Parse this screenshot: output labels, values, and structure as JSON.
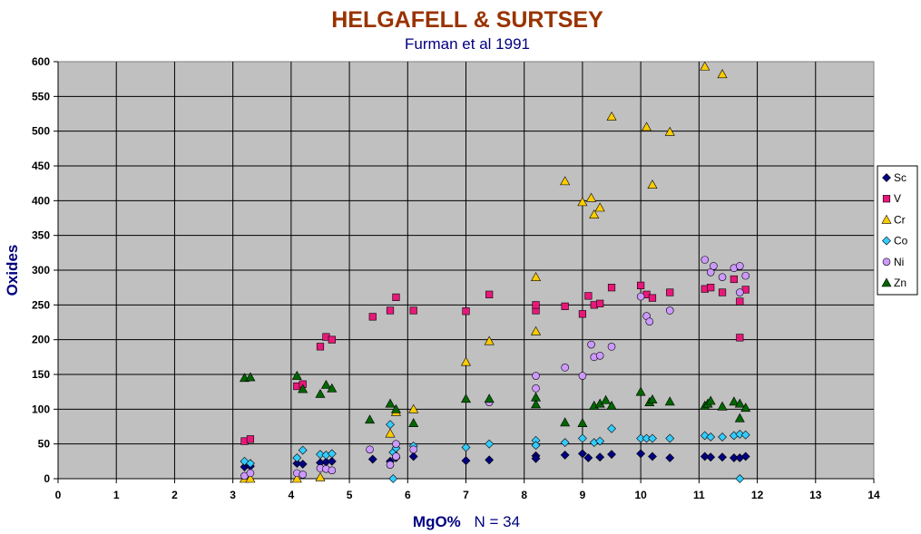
{
  "chart_data": {
    "type": "scatter",
    "title": "HELGAFELL & SURTSEY",
    "subtitle": "Furman et al 1991",
    "xlabel": "MgO%",
    "xlabel_note": "N = 34",
    "ylabel": "Oxides",
    "xlim": [
      0,
      14
    ],
    "ylim": [
      0,
      600
    ],
    "x_ticks": [
      "0",
      "1",
      "2",
      "3",
      "4",
      "5",
      "6",
      "7",
      "8",
      "9",
      "10",
      "11",
      "12",
      "13",
      "14"
    ],
    "y_ticks": [
      "0",
      "50",
      "100",
      "150",
      "200",
      "250",
      "300",
      "350",
      "400",
      "450",
      "500",
      "550",
      "600"
    ],
    "grid": true,
    "legend_position": "right",
    "background_color": "#c0c0c0",
    "series": [
      {
        "name": "Sc",
        "marker": "diamond",
        "color": "#000080",
        "points": [
          [
            3.2,
            17
          ],
          [
            3.3,
            18
          ],
          [
            4.1,
            22
          ],
          [
            4.2,
            21
          ],
          [
            4.5,
            23
          ],
          [
            4.6,
            24
          ],
          [
            4.7,
            25
          ],
          [
            5.4,
            28
          ],
          [
            5.7,
            25
          ],
          [
            5.8,
            30
          ],
          [
            6.1,
            32
          ],
          [
            7.0,
            26
          ],
          [
            7.4,
            27
          ],
          [
            8.2,
            33
          ],
          [
            8.2,
            29
          ],
          [
            8.7,
            34
          ],
          [
            9.0,
            36
          ],
          [
            9.1,
            30
          ],
          [
            9.3,
            31
          ],
          [
            9.5,
            35
          ],
          [
            10.0,
            36
          ],
          [
            10.2,
            32
          ],
          [
            10.5,
            30
          ],
          [
            11.1,
            32
          ],
          [
            11.2,
            31
          ],
          [
            11.4,
            31
          ],
          [
            11.6,
            30
          ],
          [
            11.7,
            30
          ],
          [
            11.8,
            32
          ]
        ]
      },
      {
        "name": "V",
        "marker": "square",
        "color": "#e8187a",
        "points": [
          [
            3.2,
            54
          ],
          [
            3.3,
            57
          ],
          [
            4.1,
            133
          ],
          [
            4.2,
            136
          ],
          [
            4.5,
            190
          ],
          [
            4.6,
            204
          ],
          [
            4.7,
            200
          ],
          [
            5.4,
            233
          ],
          [
            5.7,
            242
          ],
          [
            5.8,
            261
          ],
          [
            6.1,
            242
          ],
          [
            7.0,
            241
          ],
          [
            7.4,
            265
          ],
          [
            8.2,
            242
          ],
          [
            8.2,
            250
          ],
          [
            8.7,
            248
          ],
          [
            9.0,
            237
          ],
          [
            9.1,
            263
          ],
          [
            9.2,
            250
          ],
          [
            9.3,
            252
          ],
          [
            9.5,
            275
          ],
          [
            10.0,
            278
          ],
          [
            10.1,
            265
          ],
          [
            10.2,
            260
          ],
          [
            10.5,
            268
          ],
          [
            11.1,
            273
          ],
          [
            11.2,
            275
          ],
          [
            11.4,
            268
          ],
          [
            11.6,
            287
          ],
          [
            11.7,
            255
          ],
          [
            11.7,
            203
          ],
          [
            11.8,
            272
          ]
        ]
      },
      {
        "name": "Cr",
        "marker": "triangle",
        "color": "#ffcc00",
        "points": [
          [
            3.2,
            0
          ],
          [
            3.3,
            0
          ],
          [
            4.1,
            0
          ],
          [
            4.5,
            2
          ],
          [
            5.7,
            65
          ],
          [
            5.8,
            96
          ],
          [
            6.1,
            100
          ],
          [
            7.0,
            168
          ],
          [
            7.4,
            198
          ],
          [
            8.2,
            212
          ],
          [
            8.2,
            290
          ],
          [
            8.7,
            428
          ],
          [
            9.0,
            398
          ],
          [
            9.15,
            404
          ],
          [
            9.2,
            380
          ],
          [
            9.3,
            390
          ],
          [
            9.5,
            521
          ],
          [
            10.1,
            506
          ],
          [
            10.2,
            423
          ],
          [
            10.5,
            499
          ],
          [
            11.1,
            593
          ],
          [
            11.4,
            582
          ]
        ]
      },
      {
        "name": "Co",
        "marker": "diamond",
        "color": "#33ccff",
        "points": [
          [
            3.2,
            25
          ],
          [
            3.3,
            22
          ],
          [
            4.1,
            30
          ],
          [
            4.2,
            41
          ],
          [
            4.5,
            35
          ],
          [
            4.6,
            34
          ],
          [
            4.7,
            36
          ],
          [
            5.7,
            78
          ],
          [
            5.75,
            38
          ],
          [
            5.8,
            44
          ],
          [
            5.75,
            0
          ],
          [
            6.1,
            47
          ],
          [
            7.0,
            45
          ],
          [
            7.4,
            50
          ],
          [
            8.2,
            55
          ],
          [
            8.2,
            48
          ],
          [
            8.7,
            52
          ],
          [
            9.0,
            58
          ],
          [
            9.2,
            52
          ],
          [
            9.3,
            54
          ],
          [
            9.5,
            72
          ],
          [
            10.0,
            58
          ],
          [
            10.1,
            58
          ],
          [
            10.2,
            58
          ],
          [
            10.5,
            58
          ],
          [
            11.1,
            62
          ],
          [
            11.2,
            60
          ],
          [
            11.4,
            60
          ],
          [
            11.6,
            62
          ],
          [
            11.7,
            64
          ],
          [
            11.8,
            63
          ],
          [
            11.7,
            0
          ]
        ]
      },
      {
        "name": "Ni",
        "marker": "circle",
        "color": "#cc99ff",
        "points": [
          [
            3.2,
            4
          ],
          [
            3.3,
            8
          ],
          [
            4.1,
            8
          ],
          [
            4.2,
            6
          ],
          [
            4.5,
            15
          ],
          [
            4.6,
            14
          ],
          [
            4.7,
            12
          ],
          [
            5.35,
            42
          ],
          [
            5.7,
            20
          ],
          [
            5.8,
            50
          ],
          [
            5.8,
            32
          ],
          [
            6.1,
            42
          ],
          [
            7.4,
            110
          ],
          [
            8.2,
            148
          ],
          [
            8.2,
            130
          ],
          [
            8.7,
            160
          ],
          [
            9.0,
            148
          ],
          [
            9.15,
            193
          ],
          [
            9.2,
            175
          ],
          [
            9.3,
            177
          ],
          [
            9.5,
            190
          ],
          [
            10.0,
            262
          ],
          [
            10.1,
            234
          ],
          [
            10.15,
            226
          ],
          [
            10.5,
            242
          ],
          [
            11.1,
            315
          ],
          [
            11.2,
            297
          ],
          [
            11.25,
            306
          ],
          [
            11.4,
            290
          ],
          [
            11.6,
            303
          ],
          [
            11.7,
            306
          ],
          [
            11.7,
            268
          ],
          [
            11.8,
            292
          ]
        ]
      },
      {
        "name": "Zn",
        "marker": "triangle",
        "color": "#006600",
        "points": [
          [
            3.2,
            145
          ],
          [
            3.3,
            146
          ],
          [
            4.1,
            148
          ],
          [
            4.2,
            129
          ],
          [
            4.5,
            122
          ],
          [
            4.6,
            135
          ],
          [
            4.7,
            130
          ],
          [
            5.35,
            85
          ],
          [
            5.7,
            108
          ],
          [
            5.8,
            100
          ],
          [
            6.1,
            80
          ],
          [
            7.0,
            115
          ],
          [
            7.4,
            115
          ],
          [
            8.2,
            117
          ],
          [
            8.2,
            107
          ],
          [
            8.7,
            81
          ],
          [
            9.0,
            80
          ],
          [
            9.2,
            105
          ],
          [
            9.3,
            108
          ],
          [
            9.4,
            113
          ],
          [
            9.5,
            105
          ],
          [
            10.0,
            125
          ],
          [
            10.15,
            110
          ],
          [
            10.2,
            114
          ],
          [
            10.5,
            111
          ],
          [
            11.1,
            105
          ],
          [
            11.15,
            108
          ],
          [
            11.2,
            112
          ],
          [
            11.4,
            104
          ],
          [
            11.6,
            111
          ],
          [
            11.7,
            108
          ],
          [
            11.7,
            87
          ],
          [
            11.8,
            102
          ]
        ]
      }
    ]
  }
}
